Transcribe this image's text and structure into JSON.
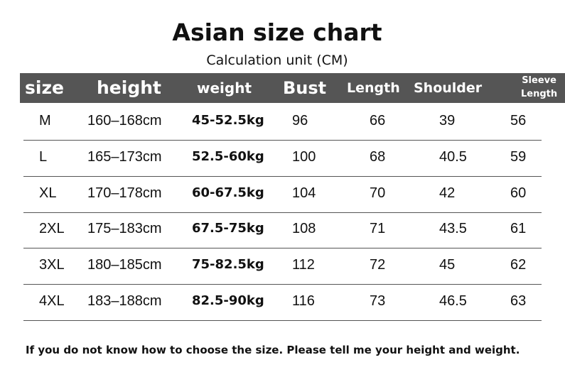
{
  "title": "Asian size chart",
  "subtitle": "Calculation unit (CM)",
  "headers": {
    "size": "size",
    "height": "height",
    "weight": "weight",
    "bust": "Bust",
    "length": "Length",
    "shoulder": "Shoulder",
    "sleeve1": "Sleeve",
    "sleeve2": "Length"
  },
  "rows": [
    {
      "size": "M",
      "height": "160–168cm",
      "weight": "45-52.5kg",
      "bust": "96",
      "length": "66",
      "shoulder": "39",
      "sleeve": "56"
    },
    {
      "size": "L",
      "height": "165–173cm",
      "weight": "52.5-60kg",
      "bust": "100",
      "length": "68",
      "shoulder": "40.5",
      "sleeve": "59"
    },
    {
      "size": "XL",
      "height": "170–178cm",
      "weight": "60-67.5kg",
      "bust": "104",
      "length": "70",
      "shoulder": "42",
      "sleeve": "60"
    },
    {
      "size": "2XL",
      "height": "175–183cm",
      "weight": "67.5-75kg",
      "bust": "108",
      "length": "71",
      "shoulder": "43.5",
      "sleeve": "61"
    },
    {
      "size": "3XL",
      "height": "180–185cm",
      "weight": "75-82.5kg",
      "bust": "112",
      "length": "72",
      "shoulder": "45",
      "sleeve": "62"
    },
    {
      "size": "4XL",
      "height": "183–188cm",
      "weight": "82.5-90kg",
      "bust": "116",
      "length": "73",
      "shoulder": "46.5",
      "sleeve": "63"
    }
  ],
  "footer": "If you do not know how to choose the size. Please tell me your height and weight."
}
